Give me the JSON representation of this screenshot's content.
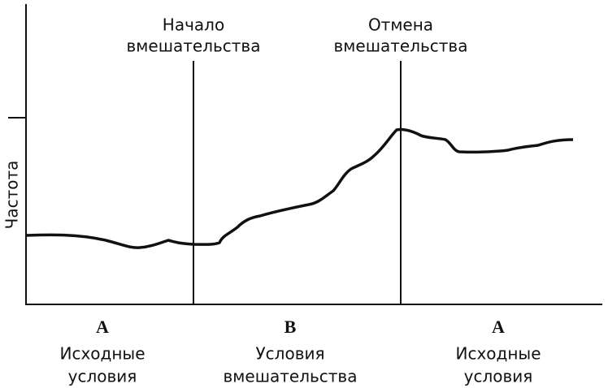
{
  "y_axis_label": "Частота",
  "markers": [
    {
      "lines": [
        "Начало",
        "вмешательства"
      ]
    },
    {
      "lines": [
        "Отмена",
        "вмешательства"
      ]
    }
  ],
  "phases": [
    {
      "letter": "A",
      "lines": [
        "Исходные",
        "условия"
      ]
    },
    {
      "letter": "B",
      "lines": [
        "Условия",
        "вмешательства"
      ]
    },
    {
      "letter": "A",
      "lines": [
        "Исходные",
        "условия"
      ]
    }
  ]
}
